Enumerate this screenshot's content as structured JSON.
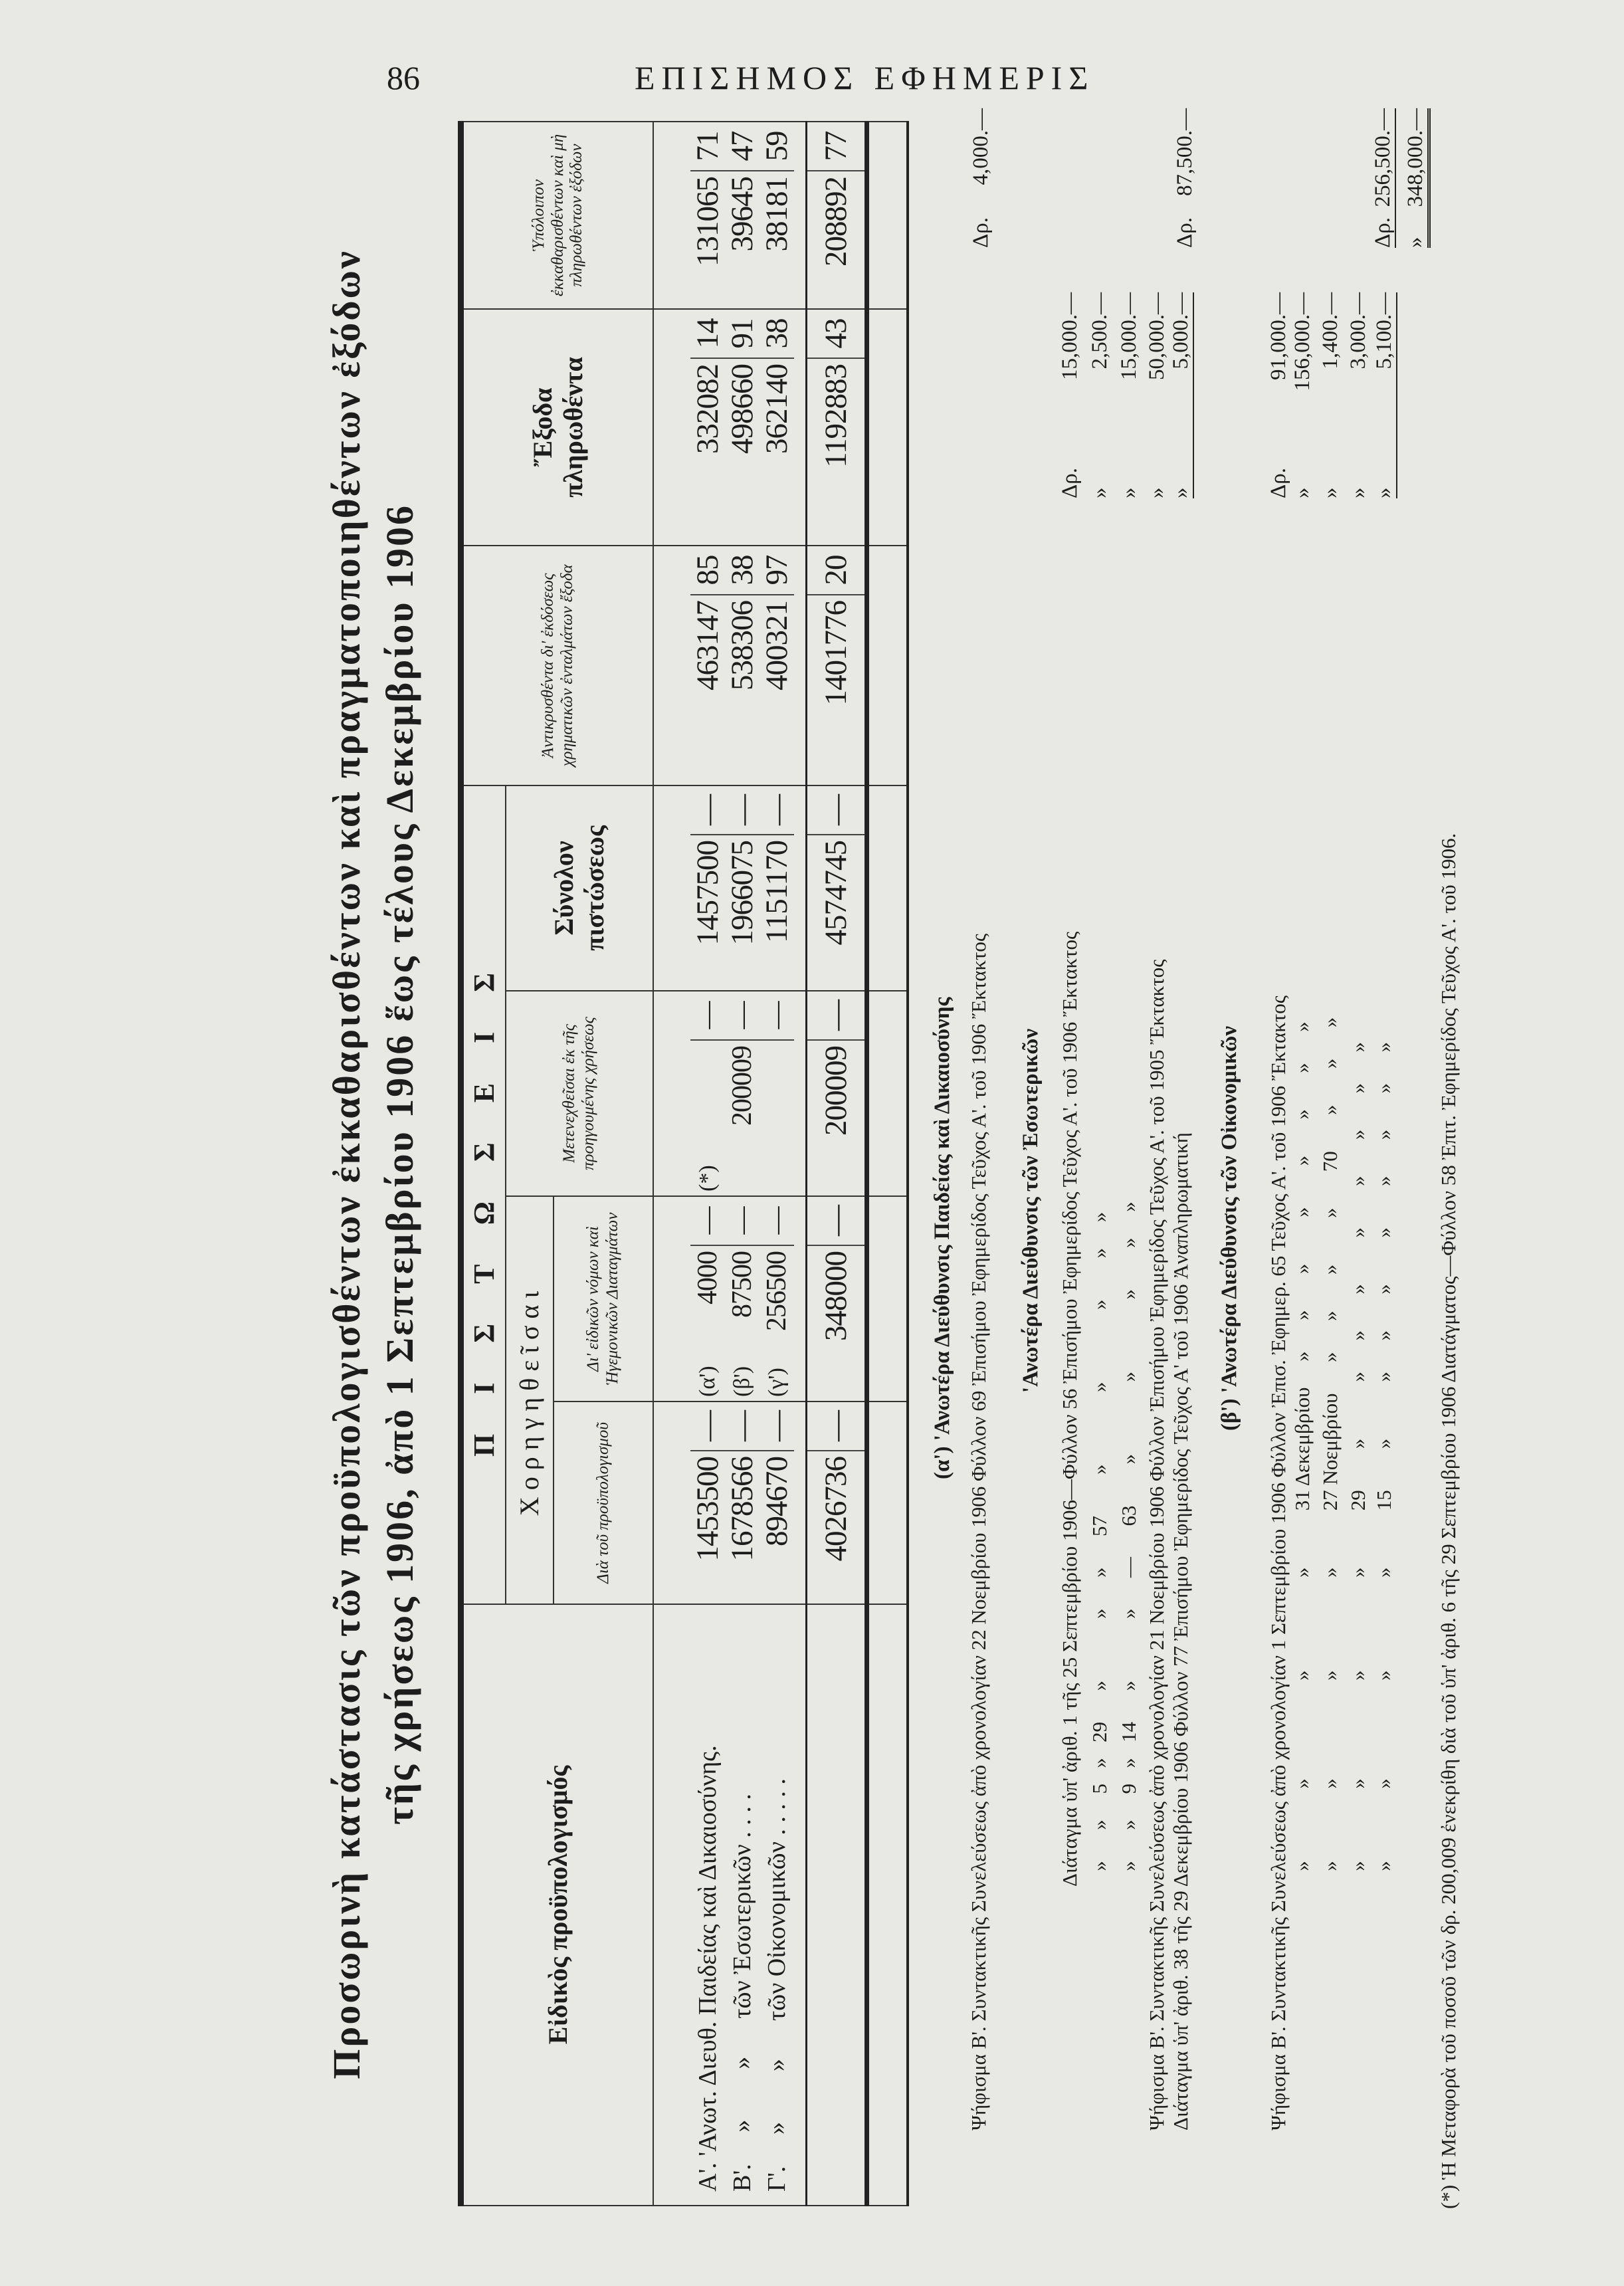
{
  "header": {
    "page_number": "86",
    "gazette_title": "ΕΠΙΣΗΜΟΣ ΕΦΗΜΕΡΙΣ"
  },
  "title": {
    "line1": "Προσωρινὴ κατάστασις τῶν προϋπολογισθέντων ἐκκαθαρισθέντων καὶ πραγματοποιηθέντων ἐξόδων",
    "line2": "τῆς χρήσεως 1906, ἀπὸ 1 Σεπτεμβρίου 1906 ἕως τέλους Δεκεμβρίου 1906"
  },
  "table": {
    "headers": {
      "budget": "Εἰδικὸς προϋπολογισμός",
      "credits": "ΠΙΣΤΩΣΕΙΣ",
      "granted": "Χορηγηθεῖσαι",
      "by_budget": "Διὰ τοῦ προϋπολογισμοῦ",
      "by_laws": "Δι' εἰδικῶν νόμων καὶ Ἡγεμονικῶν Διαταγμάτων",
      "transferred": "Μετενεχθεῖσαι ἐκ τῆς προηγουμένης χρήσεως",
      "total_credit": "Σύνολον πιστώσεως",
      "offset": "Ἀντικρυσθέντα δι' ἐκδόσεως χρηματικῶν ἐνταλμάτων ἔξοδα",
      "paid": "Ἔξοδα πληρωθέντα",
      "remaining": "Ὑπόλοιπον ἐκκαθαρισθέντων καὶ μὴ πληρωθέντων ἐξόδων"
    },
    "rows": [
      {
        "label": "Α'. 'Ανωτ. Διευθ. Παιδείας καὶ Δικαιοσύνης.",
        "by_budget": "1453500",
        "by_laws_mark": "(α')",
        "by_laws": "4000",
        "transferred_mark": "(*)",
        "transferred": "",
        "total_credit": "1457500",
        "offset": [
          "463147",
          "85"
        ],
        "paid": [
          "332082",
          "14"
        ],
        "remaining": [
          "131065",
          "71"
        ]
      },
      {
        "label": "Β'.     »        »      τῶν Ἐσωτερικῶν . . . .",
        "by_budget": "1678566",
        "by_laws_mark": "(β')",
        "by_laws": "87500",
        "transferred_mark": "",
        "transferred": "200009",
        "total_credit": "1966075",
        "offset": [
          "538306",
          "38"
        ],
        "paid": [
          "498660",
          "91"
        ],
        "remaining": [
          "39645",
          "47"
        ]
      },
      {
        "label": "Γ'.     »        »      τῶν Οἰκονομικῶν . . . . .",
        "by_budget": "894670",
        "by_laws_mark": "(γ')",
        "by_laws": "256500",
        "transferred_mark": "",
        "transferred": "",
        "total_credit": "1151170",
        "offset": [
          "400321",
          "97"
        ],
        "paid": [
          "362140",
          "38"
        ],
        "remaining": [
          "38181",
          "59"
        ]
      }
    ],
    "totals": {
      "by_budget": "4026736",
      "by_laws": "348000",
      "transferred": "200009",
      "total_credit": "4574745",
      "offset": [
        "1401776",
        "20"
      ],
      "paid": [
        "1192883",
        "43"
      ],
      "remaining": [
        "208892",
        "77"
      ]
    },
    "dash": "—"
  },
  "notes": {
    "a_heading": "(α') 'Ανωτέρα Διεύθυνσις Παιδείας καὶ Δικαιοσύνης",
    "a_line1": "Ψήφισμα Β'. Συντακτικῆς Συνελεύσεως ἀπὸ χρονολογίαν 22 Νοεμβρίου 1906 Φύλλον 69 Ἐπισήμου Ἐφημερίδος Τεῦχος Α'. τοῦ 1906 Ἔκτακτος",
    "a_sum": [
      "Δρ.",
      "4,000.—"
    ],
    "b_heading": "'Ανωτέρα Διεύθυνσις τῶν Ἐσωτερικῶν",
    "b_lines": [
      {
        "text": "Διάταγμα ὑπ' ἀριθ. 1 τῆς 25 Σεπτεμβρίου 1906—Φύλλον 56 Ἐπισήμου Ἐφημερίδος Τεῦχος Α'. τοῦ 1906 Ἔκτακτος",
        "prefix": "Δρ.",
        "amount": "15,000.—"
      },
      {
        "text": "   »      »     5   »   29      »            »      »      57        »              »              »        »     »",
        "prefix": "»",
        "amount": "2,500.—"
      },
      {
        "text": "   »      »     9   »   14      »            »      —      63        »              »              »        »     »",
        "prefix": "»",
        "amount": "15,000.—"
      },
      {
        "text": "Ψήφισμα Β'. Συντακτικῆς Συνελεύσεως ἀπὸ χρονολογίαν 21 Νοεμβρίου 1906 Φύλλον Ἐπισήμου Ἐφημερίδος Τεῦχος Α'. τοῦ 1905 Ἔκτακτος",
        "prefix": "»",
        "amount": "50,000.—"
      },
      {
        "text": "Διάταγμα ὑπ' ἀριθ. 38 τῆς 29 Δεκεμβρίου 1906 Φύλλον 77 Ἐπισήμου Ἐφημερίδος Τεῦχος Α' τοῦ 1906 Ἀναπληρωματική",
        "prefix": "»",
        "amount": "5,000.—"
      }
    ],
    "b_sum": [
      "Δρ.",
      "87,500.—"
    ],
    "c_heading": "(β') 'Ανωτέρα Διεύθυνσις τῶν Οἰκονομικῶν",
    "c_lines": [
      {
        "text": "Ψήφισμα Β'. Συντακτικῆς Συνελεύσεως ἀπὸ χρονολογίαν 1 Σεπτεμβρίου 1906 Φύλλον Ἐπισ. Ἐφημερ. 65 Τεῦχος Α'. τοῦ 1906 Ἔκτακτος",
        "prefix": "Δρ.",
        "amount": "91,000.—"
      },
      {
        "text": "   »              »                   »                  »           31 Δεκεμβρίου     »      »       »         »        »       »       »      »",
        "prefix": "»",
        "amount": "156,000.—"
      },
      {
        "text": "   »              »                   »                  »           27 Νοεμβρίου      »      »       »         »       70       »       »      »",
        "prefix": "»",
        "amount": "1,400.—"
      },
      {
        "text": "   »              »                   »                  »           29        »           »      »       »         »        »       »       »      »",
        "prefix": "»",
        "amount": "3,000.—"
      },
      {
        "text": "   »              »                   »                  »           15        »           »      »       »         »        »       »       »      »",
        "prefix": "»",
        "amount": "5,100.—"
      }
    ],
    "c_sum": [
      "Δρ.",
      "256,500.—"
    ],
    "grand_total": [
      "»",
      "348,000.—"
    ],
    "footnote": "(*) Ἡ Μεταφορὰ τοῦ ποσοῦ τῶν δρ. 200,009 ἐνεκρίθη διὰ τοῦ ὑπ' ἀριθ. 6 τῆς 29 Σεπτεμβρίου 1906 Διατάγματος—Φύλλον 58 Ἐπιτ. Ἐφημερίδος Τεῦχος Α'. τοῦ 1906."
  }
}
